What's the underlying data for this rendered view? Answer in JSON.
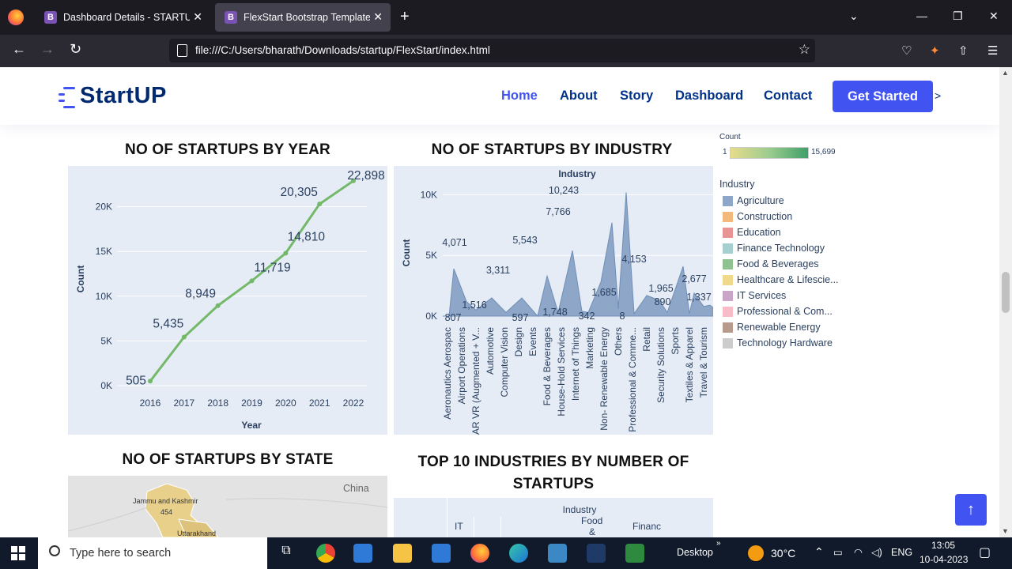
{
  "browser": {
    "tabs": [
      {
        "title": "Dashboard Details - STARTUP Bo",
        "favicon": "B"
      },
      {
        "title": "FlexStart Bootstrap Template - In",
        "favicon": "B"
      }
    ],
    "url": "file:///C:/Users/bharath/Downloads/startup/FlexStart/index.html"
  },
  "site": {
    "logo": "StartUP",
    "nav": [
      "Home",
      "About",
      "Story",
      "Dashboard",
      "Contact"
    ],
    "cta": "Get Started",
    "cta_tail": ">"
  },
  "sections": {
    "year_title": "NO OF STARTUPS BY YEAR",
    "industry_title": "NO OF STARTUPS BY INDUSTRY",
    "state_title": "NO OF STARTUPS BY STATE",
    "top10_title": "TOP 10 INDUSTRIES BY NUMBER OF STARTUPS"
  },
  "legend": {
    "count_label": "Count",
    "count_min": "1",
    "count_max": "15,699",
    "industry_label": "Industry",
    "items": [
      {
        "name": "Agriculture",
        "color": "#8ea6c8"
      },
      {
        "name": "Construction",
        "color": "#f2b87c"
      },
      {
        "name": "Education",
        "color": "#e89494"
      },
      {
        "name": "Finance Technology",
        "color": "#a6cfcf"
      },
      {
        "name": "Food & Beverages",
        "color": "#8fc290"
      },
      {
        "name": "Healthcare & Lifescie...",
        "color": "#f0d98a"
      },
      {
        "name": "IT Services",
        "color": "#c9a6c8"
      },
      {
        "name": "Professional & Com...",
        "color": "#f8bcc8"
      },
      {
        "name": "Renewable Energy",
        "color": "#b79b8c"
      },
      {
        "name": "Technology Hardware",
        "color": "#cccccc"
      }
    ]
  },
  "map": {
    "labels": [
      "China",
      "Jammu and Kashmir",
      "454",
      "Uttarakhand"
    ]
  },
  "top10_partial": {
    "axis_title": "Industry",
    "visible_labels": [
      "IT",
      "Food",
      "&",
      "Financ"
    ]
  },
  "chart_data": [
    {
      "type": "line",
      "title": "NO OF STARTUPS BY YEAR",
      "xlabel": "Year",
      "ylabel": "Count",
      "x": [
        "2016",
        "2017",
        "2018",
        "2019",
        "2020",
        "2021",
        "2022"
      ],
      "values": [
        505,
        5435,
        8949,
        11719,
        14810,
        20305,
        22898
      ],
      "labels": [
        "505",
        "5,435",
        "8,949",
        "11,719",
        "14,810",
        "20,305",
        "22,898"
      ],
      "yticks": [
        "0K",
        "5K",
        "10K",
        "15K",
        "20K"
      ],
      "ylim": [
        0,
        23500
      ],
      "color": "#74b96a"
    },
    {
      "type": "area",
      "title": "NO OF STARTUPS BY INDUSTRY",
      "xlabel": "Industry",
      "ylabel": "Count",
      "categories": [
        "Aeronautics Aerospac",
        "Airport Operations",
        "AR VR (Augmented + V...",
        "Automotive",
        "Computer Vision",
        "Design",
        "Events",
        "Food & Beverages",
        "House-Hold Services",
        "Internet of Things",
        "Marketing",
        "Non- Renewable Energy",
        "Others",
        "Professional & Comme...",
        "Retail",
        "Security Solutions",
        "Sports",
        "Textiles & Apparel",
        "Travel & Tourism"
      ],
      "yticks": [
        "0K",
        "5K",
        "10K"
      ],
      "ylim": [
        0,
        11200
      ],
      "peaks": [
        {
          "value": 807,
          "label": "807"
        },
        {
          "value": 4071,
          "label": "4,071"
        },
        {
          "value": 1516,
          "label": "1,516"
        },
        {
          "value": 3311,
          "label": "3,311"
        },
        {
          "value": 597,
          "label": "597"
        },
        {
          "value": 5543,
          "label": "5,543"
        },
        {
          "value": 1748,
          "label": "1,748"
        },
        {
          "value": 7766,
          "label": "7,766"
        },
        {
          "value": 10243,
          "label": "10,243"
        },
        {
          "value": 342,
          "label": "342"
        },
        {
          "value": 1685,
          "label": "1,685"
        },
        {
          "value": 8,
          "label": "8"
        },
        {
          "value": 4153,
          "label": "4,153"
        },
        {
          "value": 1965,
          "label": "1,965"
        },
        {
          "value": 890,
          "label": "890"
        },
        {
          "value": 2677,
          "label": "2,677"
        },
        {
          "value": 1337,
          "label": "1,337"
        }
      ],
      "color": "#8ea6c8"
    }
  ],
  "taskbar": {
    "search_placeholder": "Type here to search",
    "desktop": "Desktop",
    "temp": "30°C",
    "lang": "ENG",
    "time": "13:05",
    "date": "10-04-2023"
  }
}
